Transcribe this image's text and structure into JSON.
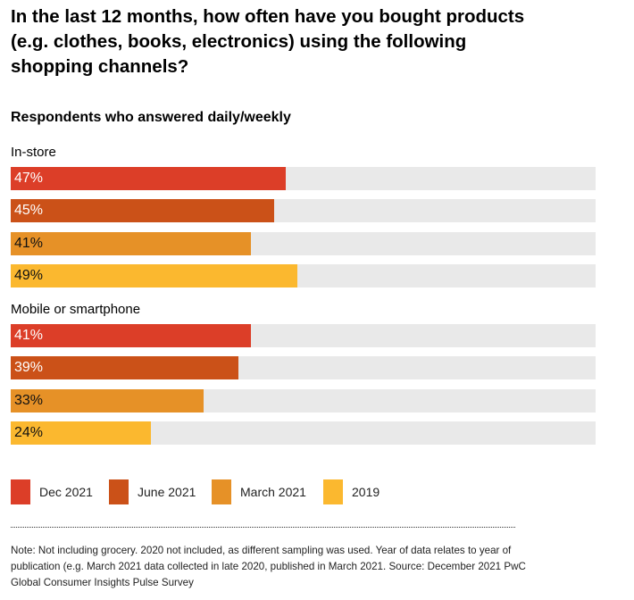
{
  "chart_data": {
    "type": "bar",
    "orientation": "horizontal",
    "title": "In the last 12 months, how often have you bought products (e.g. clothes, books, electronics) using the following shopping channels?",
    "subtitle": "Respondents who answered daily/weekly",
    "xlim": [
      0,
      100
    ],
    "categories": [
      "In-store",
      "Mobile or smartphone"
    ],
    "series": [
      {
        "name": "Dec 2021",
        "color": "#dc3e28",
        "label_color": "#ffffff",
        "values": [
          47,
          41
        ],
        "labels": [
          "47%",
          "41%"
        ]
      },
      {
        "name": "June 2021",
        "color": "#cb5118",
        "label_color": "#ffffff",
        "values": [
          45,
          39
        ],
        "labels": [
          "45%",
          "39%"
        ]
      },
      {
        "name": "March 2021",
        "color": "#e69127",
        "label_color": "#111111",
        "values": [
          41,
          33
        ],
        "labels": [
          "41%",
          "33%"
        ]
      },
      {
        "name": "2019",
        "color": "#fbb82f",
        "label_color": "#111111",
        "values": [
          49,
          24
        ],
        "labels": [
          "49%",
          "24%"
        ]
      }
    ],
    "track_color": "#e9e9e9",
    "legend": "bottom-left",
    "grid": false
  },
  "note": "Note: Not including grocery. 2020 not included, as different sampling was used. Year of data relates to year of publication (e.g. March 2021 data collected in late 2020, published in March 2021. Source: December 2021 PwC Global Consumer Insights Pulse Survey"
}
